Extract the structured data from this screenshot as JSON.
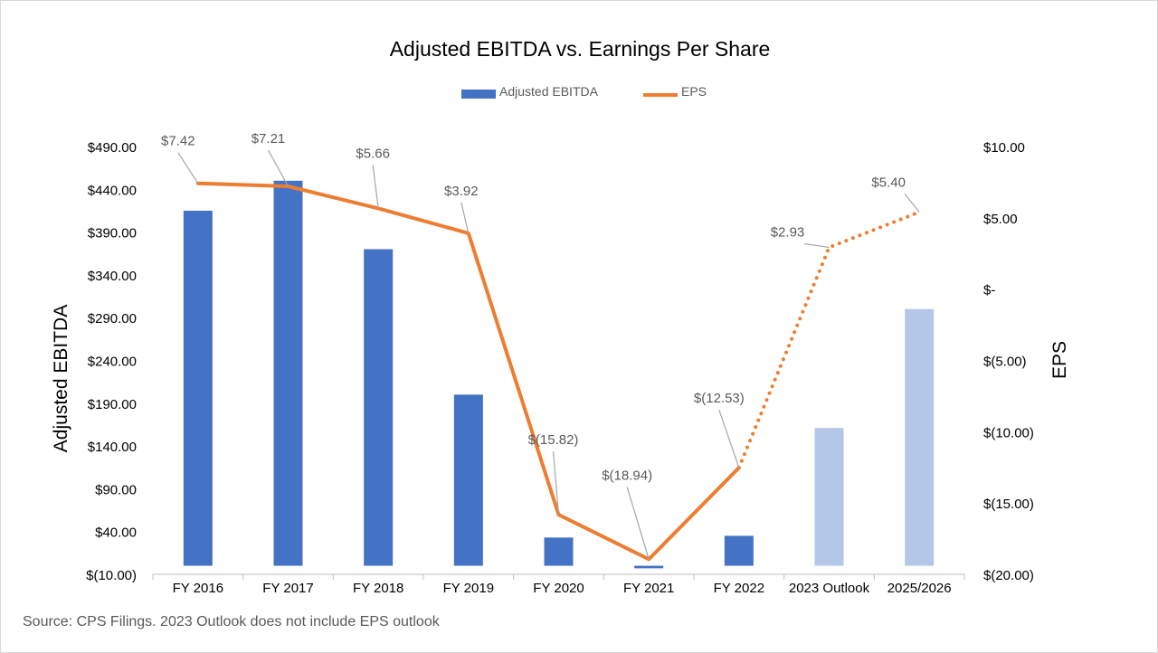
{
  "chart_data": {
    "type": "bar",
    "title": "Adjusted EBITDA vs. Earnings Per Share",
    "categories": [
      "FY 2016",
      "FY 2017",
      "FY 2018",
      "FY 2019",
      "FY 2020",
      "FY 2021",
      "FY 2022",
      "2023 Outlook",
      "2025/2026"
    ],
    "series": [
      {
        "name": "Adjusted EBITDA",
        "type": "bar",
        "axis": "left",
        "values": [
          415,
          450,
          370,
          200,
          33,
          -3,
          35,
          161,
          300
        ],
        "color": "#4472c4",
        "faded_color": "#b4c7e7",
        "faded_categories": [
          "2023 Outlook",
          "2025/2026"
        ]
      },
      {
        "name": "EPS",
        "type": "line",
        "axis": "right",
        "values": [
          7.42,
          7.21,
          5.66,
          3.92,
          -15.82,
          -18.94,
          -12.53,
          2.93,
          5.4
        ],
        "data_labels": [
          "$7.42",
          "$7.21",
          "$5.66",
          "$3.92",
          "$(15.82)",
          "$(18.94)",
          "$(12.53)",
          "$2.93",
          "$5.40"
        ],
        "color": "#ed7d31",
        "dotted_from_category": "FY 2022"
      }
    ],
    "ylabel": "Adjusted EBITDA",
    "ylim": [
      -10,
      490
    ],
    "y_ticks": [
      490,
      440,
      390,
      340,
      290,
      240,
      190,
      140,
      90,
      40,
      -10
    ],
    "y_tick_labels": [
      "$490.00",
      "$440.00",
      "$390.00",
      "$340.00",
      "$290.00",
      "$240.00",
      "$190.00",
      "$140.00",
      "$90.00",
      "$40.00",
      "$(10.00)"
    ],
    "y2label": "EPS",
    "y2lim": [
      -20,
      10
    ],
    "y2_ticks": [
      10,
      5,
      0,
      -5,
      -10,
      -15,
      -20
    ],
    "y2_tick_labels": [
      "$10.00",
      "$5.00",
      "$-",
      "$(5.00)",
      "$(10.00)",
      "$(15.00)",
      "$(20.00)"
    ],
    "grid": false,
    "legend_position": "top-center",
    "source_note": "Source: CPS Filings. 2023 Outlook does not include EPS outlook"
  }
}
